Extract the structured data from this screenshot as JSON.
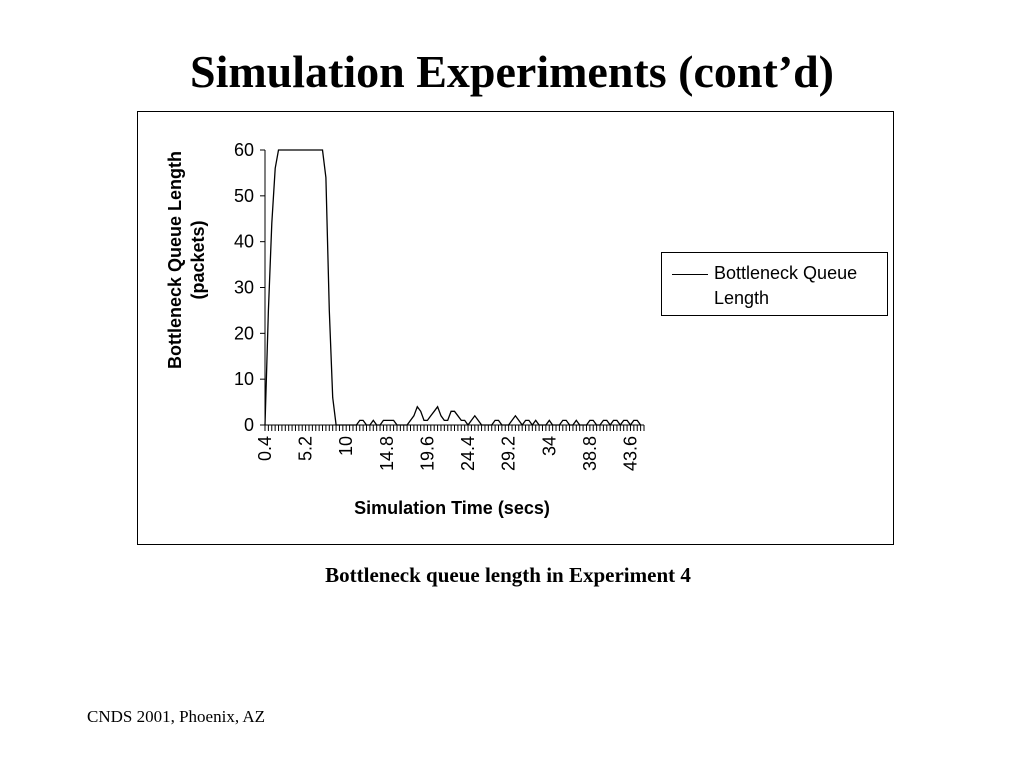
{
  "slide": {
    "title": "Simulation Experiments (cont’d)",
    "caption": "Bottleneck queue length in Experiment 4",
    "footer": "CNDS 2001, Phoenix, AZ"
  },
  "chart_data": {
    "type": "line",
    "title": "",
    "xlabel": "Simulation Time (secs)",
    "ylabel": [
      "Bottleneck Queue Length",
      "(packets)"
    ],
    "ylim": [
      0,
      60
    ],
    "yticks": [
      0,
      10,
      20,
      30,
      40,
      50,
      60
    ],
    "xlim": [
      0.4,
      45.2
    ],
    "xtick_labels": [
      "0.4",
      "5.2",
      "10",
      "14.8",
      "19.6",
      "24.4",
      "29.2",
      "34",
      "38.8",
      "43.6"
    ],
    "xtick_values": [
      0.4,
      5.2,
      10,
      14.8,
      19.6,
      24.4,
      29.2,
      34,
      38.8,
      43.6
    ],
    "x_step": 0.4,
    "legend_position": "right",
    "grid": false,
    "series": [
      {
        "name": "Bottleneck Queue Length",
        "color": "#000000",
        "x": [
          0.4,
          0.8,
          1.2,
          1.6,
          2.0,
          2.4,
          3.2,
          4.0,
          4.8,
          5.6,
          6.4,
          7.2,
          7.6,
          8.0,
          8.4,
          8.8,
          9.2,
          9.6,
          10.0,
          10.4,
          10.8,
          11.2,
          11.6,
          12.0,
          12.4,
          12.8,
          13.2,
          13.6,
          14.0,
          14.4,
          14.8,
          15.2,
          15.6,
          16.0,
          16.4,
          16.8,
          17.2,
          17.6,
          18.0,
          18.4,
          18.8,
          19.2,
          19.6,
          20.0,
          20.4,
          20.8,
          21.2,
          21.6,
          22.0,
          22.4,
          22.8,
          23.2,
          23.6,
          24.0,
          24.4,
          24.8,
          25.2,
          25.6,
          26.0,
          26.4,
          26.8,
          27.2,
          27.6,
          28.0,
          28.4,
          28.8,
          29.2,
          29.6,
          30.0,
          30.4,
          30.8,
          31.2,
          31.6,
          32.0,
          32.4,
          32.8,
          33.2,
          33.6,
          34.0,
          34.4,
          34.8,
          35.2,
          35.6,
          36.0,
          36.4,
          36.8,
          37.2,
          37.6,
          38.0,
          38.4,
          38.8,
          39.2,
          39.6,
          40.0,
          40.4,
          40.8,
          41.2,
          41.6,
          42.0,
          42.4,
          42.8,
          43.2,
          43.6,
          44.0,
          44.4,
          44.8
        ],
        "y": [
          0,
          25,
          44,
          56,
          60,
          60,
          60,
          60,
          60,
          60,
          60,
          60,
          54,
          25,
          6,
          0,
          0,
          0,
          0,
          0,
          0,
          0,
          1,
          1,
          0,
          0,
          1,
          0,
          0,
          1,
          1,
          1,
          1,
          0,
          0,
          0,
          0,
          1,
          2,
          4,
          3,
          1,
          1,
          2,
          3,
          4,
          2,
          1,
          1,
          3,
          3,
          2,
          1,
          1,
          0,
          1,
          2,
          1,
          0,
          0,
          0,
          0,
          1,
          1,
          0,
          0,
          0,
          1,
          2,
          1,
          0,
          1,
          1,
          0,
          1,
          0,
          0,
          0,
          1,
          0,
          0,
          0,
          1,
          1,
          0,
          0,
          1,
          0,
          0,
          0,
          1,
          1,
          0,
          0,
          1,
          1,
          0,
          1,
          1,
          0,
          1,
          1,
          0,
          1,
          1,
          0
        ]
      }
    ]
  }
}
